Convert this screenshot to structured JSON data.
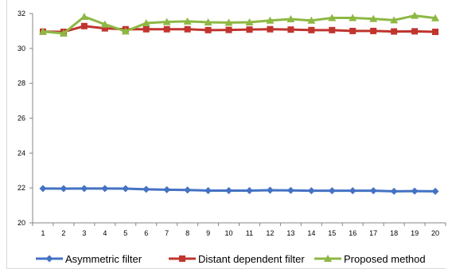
{
  "chart_data": {
    "type": "line",
    "x": [
      1,
      2,
      3,
      4,
      5,
      6,
      7,
      8,
      9,
      10,
      11,
      12,
      13,
      14,
      15,
      16,
      17,
      18,
      19,
      20
    ],
    "ylim": [
      20,
      32
    ],
    "yticks": [
      20,
      22,
      24,
      26,
      28,
      30,
      32
    ],
    "grid": false,
    "legend_position": "bottom",
    "series": [
      {
        "name": "Asymmetric filter",
        "color": "#4472C4",
        "marker": "diamond",
        "values": [
          21.97,
          21.96,
          21.97,
          21.97,
          21.96,
          21.92,
          21.9,
          21.88,
          21.85,
          21.85,
          21.85,
          21.87,
          21.86,
          21.84,
          21.84,
          21.84,
          21.84,
          21.81,
          21.82,
          21.81
        ]
      },
      {
        "name": "Distant dependent filter",
        "color": "#C0352E",
        "marker": "square",
        "values": [
          30.96,
          30.95,
          31.28,
          31.15,
          31.1,
          31.1,
          31.1,
          31.1,
          31.05,
          31.06,
          31.08,
          31.1,
          31.08,
          31.05,
          31.05,
          31.0,
          31.0,
          30.97,
          30.98,
          30.95
        ]
      },
      {
        "name": "Proposed method",
        "color": "#8DB843",
        "marker": "triangle",
        "values": [
          30.97,
          30.86,
          31.82,
          31.38,
          30.98,
          31.45,
          31.52,
          31.55,
          31.5,
          31.48,
          31.5,
          31.6,
          31.68,
          31.6,
          31.75,
          31.75,
          31.7,
          31.62,
          31.88,
          31.74
        ]
      }
    ]
  }
}
